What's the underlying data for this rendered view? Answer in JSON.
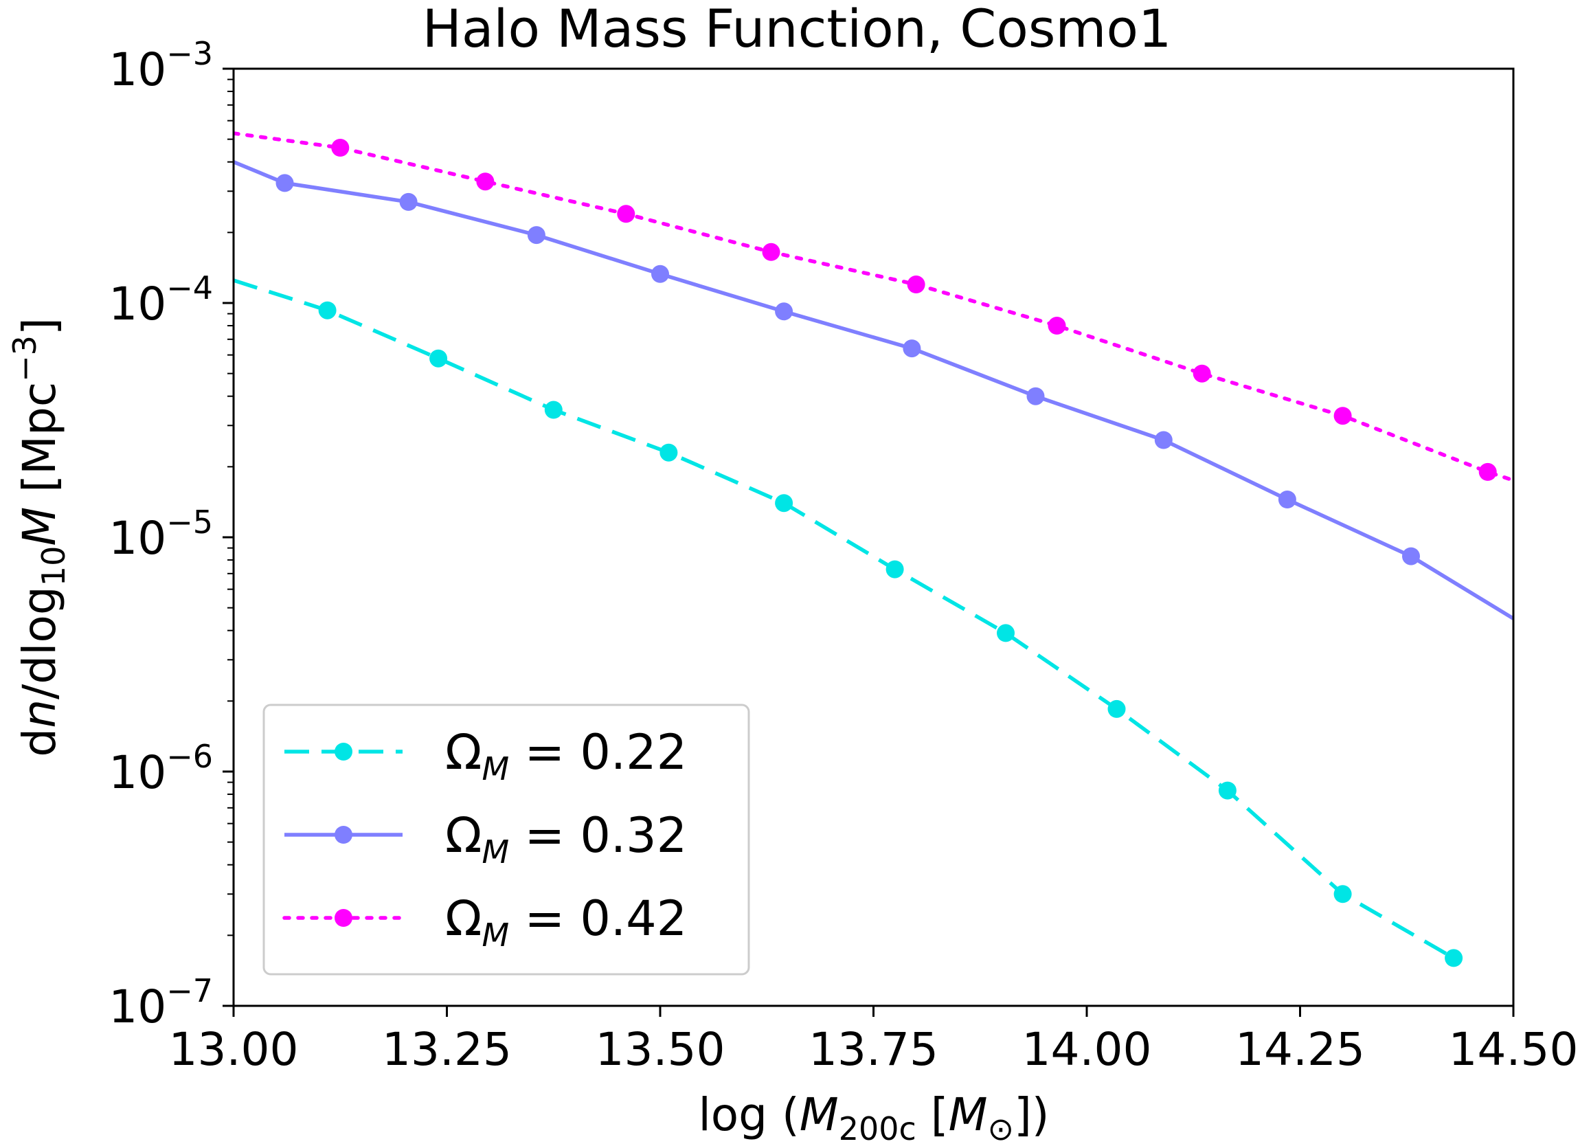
{
  "chart_data": {
    "type": "line",
    "title": "Halo Mass Function, Cosmo1",
    "xlabel": "log (M200c [M⊙])",
    "xlabel_parts": {
      "prefix": "log (",
      "var": "M",
      "sub": "200c",
      "mid": " [",
      "unit": "M",
      "unit_sub": "⊙",
      "suffix": "])"
    },
    "ylabel": "dn/dlog10M [Mpc−3]",
    "ylabel_parts": {
      "d1": "d",
      "n": "n",
      "slash": "/dlog",
      "sub": "10",
      "M": "M",
      "bracket": " [Mpc",
      "exp": "−3",
      "close": "]"
    },
    "xlim": [
      13.0,
      14.5
    ],
    "ylim": [
      1e-07,
      0.001
    ],
    "y_scale": "log",
    "grid": false,
    "legend_position": "lower-left",
    "x_ticks": [
      {
        "value": 13.0,
        "label": "13.00"
      },
      {
        "value": 13.25,
        "label": "13.25"
      },
      {
        "value": 13.5,
        "label": "13.50"
      },
      {
        "value": 13.75,
        "label": "13.75"
      },
      {
        "value": 14.0,
        "label": "14.00"
      },
      {
        "value": 14.25,
        "label": "14.25"
      },
      {
        "value": 14.5,
        "label": "14.50"
      }
    ],
    "y_ticks": [
      {
        "value": 0.001,
        "base": "10",
        "exp": "−3"
      },
      {
        "value": 0.0001,
        "base": "10",
        "exp": "−4"
      },
      {
        "value": 1e-05,
        "base": "10",
        "exp": "−5"
      },
      {
        "value": 1e-06,
        "base": "10",
        "exp": "−6"
      },
      {
        "value": 1e-07,
        "base": "10",
        "exp": "−7"
      }
    ],
    "series": [
      {
        "name": "ΩM = 0.22",
        "label_symbol": "Ω",
        "label_sub": "M",
        "label_value": " = 0.22",
        "color": "#00e5e5",
        "linestyle": "dashed",
        "line": [
          [
            13.0,
            0.000125
          ],
          [
            13.11,
            9.3e-05
          ],
          [
            13.24,
            5.8e-05
          ],
          [
            13.375,
            3.5e-05
          ],
          [
            13.51,
            2.3e-05
          ],
          [
            13.645,
            1.4e-05
          ],
          [
            13.775,
            7.3e-06
          ],
          [
            13.905,
            3.9e-06
          ],
          [
            14.035,
            1.85e-06
          ],
          [
            14.165,
            8.3e-07
          ],
          [
            14.3,
            3e-07
          ],
          [
            14.43,
            1.6e-07
          ]
        ],
        "markers": [
          [
            13.11,
            9.3e-05
          ],
          [
            13.24,
            5.8e-05
          ],
          [
            13.375,
            3.5e-05
          ],
          [
            13.51,
            2.3e-05
          ],
          [
            13.645,
            1.4e-05
          ],
          [
            13.775,
            7.3e-06
          ],
          [
            13.905,
            3.9e-06
          ],
          [
            14.035,
            1.85e-06
          ],
          [
            14.165,
            8.3e-07
          ],
          [
            14.3,
            3e-07
          ],
          [
            14.43,
            1.6e-07
          ]
        ]
      },
      {
        "name": "ΩM = 0.32",
        "label_symbol": "Ω",
        "label_sub": "M",
        "label_value": " = 0.32",
        "color": "#7f7fff",
        "linestyle": "solid",
        "line": [
          [
            13.0,
            0.0004
          ],
          [
            13.06,
            0.000325
          ],
          [
            13.205,
            0.00027
          ],
          [
            13.355,
            0.000195
          ],
          [
            13.5,
            0.000133
          ],
          [
            13.645,
            9.2e-05
          ],
          [
            13.795,
            6.4e-05
          ],
          [
            13.94,
            4e-05
          ],
          [
            14.09,
            2.6e-05
          ],
          [
            14.235,
            1.45e-05
          ],
          [
            14.38,
            8.3e-06
          ],
          [
            14.5,
            4.5e-06
          ]
        ],
        "markers": [
          [
            13.06,
            0.000325
          ],
          [
            13.205,
            0.00027
          ],
          [
            13.355,
            0.000195
          ],
          [
            13.5,
            0.000133
          ],
          [
            13.645,
            9.2e-05
          ],
          [
            13.795,
            6.4e-05
          ],
          [
            13.94,
            4e-05
          ],
          [
            14.09,
            2.6e-05
          ],
          [
            14.235,
            1.45e-05
          ],
          [
            14.38,
            8.3e-06
          ]
        ]
      },
      {
        "name": "ΩM = 0.42",
        "label_symbol": "Ω",
        "label_sub": "M",
        "label_value": " = 0.42",
        "color": "#ff00ff",
        "linestyle": "dotted",
        "line": [
          [
            13.0,
            0.00053
          ],
          [
            13.125,
            0.00046
          ],
          [
            13.295,
            0.00033
          ],
          [
            13.46,
            0.00024
          ],
          [
            13.63,
            0.000165
          ],
          [
            13.8,
            0.00012
          ],
          [
            13.965,
            8e-05
          ],
          [
            14.135,
            5e-05
          ],
          [
            14.3,
            3.3e-05
          ],
          [
            14.47,
            1.9e-05
          ],
          [
            14.5,
            1.75e-05
          ]
        ],
        "markers": [
          [
            13.125,
            0.00046
          ],
          [
            13.295,
            0.00033
          ],
          [
            13.46,
            0.00024
          ],
          [
            13.63,
            0.000165
          ],
          [
            13.8,
            0.00012
          ],
          [
            13.965,
            8e-05
          ],
          [
            14.135,
            5e-05
          ],
          [
            14.3,
            3.3e-05
          ],
          [
            14.47,
            1.9e-05
          ]
        ]
      }
    ]
  }
}
